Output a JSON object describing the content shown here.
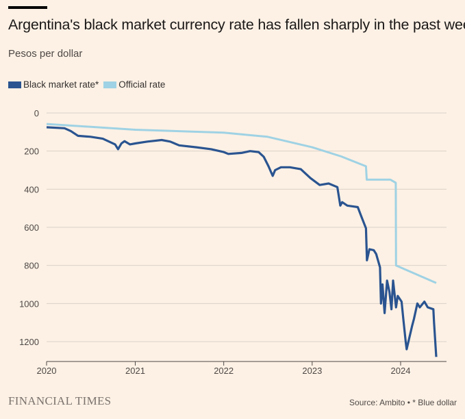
{
  "chart_data": {
    "type": "line",
    "title": "Argentina's black market currency rate has fallen sharply in the past week",
    "subtitle": "Pesos per dollar",
    "ylabel": "",
    "xlabel": "",
    "y_inverted": true,
    "ylim": [
      0,
      1200
    ],
    "yticks": [
      "0",
      "200",
      "400",
      "600",
      "800",
      "1000",
      "1200"
    ],
    "xlim": [
      "2020-01-01",
      "2024-07-15"
    ],
    "xticks": [
      "2020",
      "2021",
      "2022",
      "2023",
      "2024"
    ],
    "grid": "horizontal",
    "legend_position": "top-left",
    "series": [
      {
        "name": "Black market rate*",
        "color": "#2a5490",
        "points": [
          [
            "2020-01-01",
            75
          ],
          [
            "2020-03-15",
            80
          ],
          [
            "2020-04-10",
            95
          ],
          [
            "2020-05-10",
            120
          ],
          [
            "2020-07-01",
            125
          ],
          [
            "2020-08-20",
            135
          ],
          [
            "2020-10-10",
            165
          ],
          [
            "2020-10-22",
            190
          ],
          [
            "2020-11-05",
            160
          ],
          [
            "2020-11-18",
            148
          ],
          [
            "2020-12-10",
            165
          ],
          [
            "2021-01-01",
            160
          ],
          [
            "2021-02-20",
            150
          ],
          [
            "2021-04-20",
            142
          ],
          [
            "2021-05-25",
            150
          ],
          [
            "2021-07-01",
            170
          ],
          [
            "2021-09-10",
            180
          ],
          [
            "2021-11-10",
            190
          ],
          [
            "2022-01-01",
            205
          ],
          [
            "2022-01-20",
            215
          ],
          [
            "2022-03-15",
            210
          ],
          [
            "2022-04-20",
            200
          ],
          [
            "2022-05-25",
            205
          ],
          [
            "2022-06-15",
            230
          ],
          [
            "2022-07-05",
            280
          ],
          [
            "2022-07-22",
            330
          ],
          [
            "2022-08-01",
            300
          ],
          [
            "2022-08-25",
            285
          ],
          [
            "2022-10-01",
            285
          ],
          [
            "2022-11-15",
            295
          ],
          [
            "2022-12-25",
            342
          ],
          [
            "2023-02-01",
            378
          ],
          [
            "2023-03-10",
            370
          ],
          [
            "2023-04-15",
            389
          ],
          [
            "2023-04-27",
            486
          ],
          [
            "2023-05-05",
            468
          ],
          [
            "2023-05-26",
            486
          ],
          [
            "2023-07-08",
            494
          ],
          [
            "2023-07-22",
            540
          ],
          [
            "2023-08-11",
            605
          ],
          [
            "2023-08-15",
            773
          ],
          [
            "2023-08-25",
            715
          ],
          [
            "2023-09-12",
            720
          ],
          [
            "2023-09-22",
            740
          ],
          [
            "2023-10-08",
            810
          ],
          [
            "2023-10-12",
            1000
          ],
          [
            "2023-10-18",
            900
          ],
          [
            "2023-10-27",
            1050
          ],
          [
            "2023-11-06",
            880
          ],
          [
            "2023-11-16",
            940
          ],
          [
            "2023-11-24",
            1030
          ],
          [
            "2023-12-01",
            880
          ],
          [
            "2023-12-13",
            1020
          ],
          [
            "2023-12-20",
            960
          ],
          [
            "2024-01-05",
            990
          ],
          [
            "2024-01-12",
            1080
          ],
          [
            "2024-01-22",
            1200
          ],
          [
            "2024-01-26",
            1240
          ],
          [
            "2024-02-06",
            1180
          ],
          [
            "2024-02-17",
            1120
          ],
          [
            "2024-02-25",
            1080
          ],
          [
            "2024-03-10",
            1000
          ],
          [
            "2024-03-20",
            1020
          ],
          [
            "2024-04-08",
            990
          ],
          [
            "2024-04-22",
            1020
          ],
          [
            "2024-05-15",
            1030
          ],
          [
            "2024-05-18",
            1100
          ],
          [
            "2024-05-27",
            1280
          ]
        ]
      },
      {
        "name": "Official rate",
        "color": "#9fd2e4",
        "points": [
          [
            "2020-01-01",
            58
          ],
          [
            "2021-01-01",
            88
          ],
          [
            "2022-01-01",
            103
          ],
          [
            "2022-07-01",
            125
          ],
          [
            "2023-01-01",
            180
          ],
          [
            "2023-05-01",
            228
          ],
          [
            "2023-08-11",
            280
          ],
          [
            "2023-08-14",
            350
          ],
          [
            "2023-11-20",
            350
          ],
          [
            "2023-12-12",
            366
          ],
          [
            "2023-12-13",
            800
          ],
          [
            "2024-05-27",
            892
          ]
        ]
      }
    ]
  },
  "footer": {
    "logo": "FINANCIAL TIMES",
    "source": "Source: Ambito • * Blue dollar"
  }
}
